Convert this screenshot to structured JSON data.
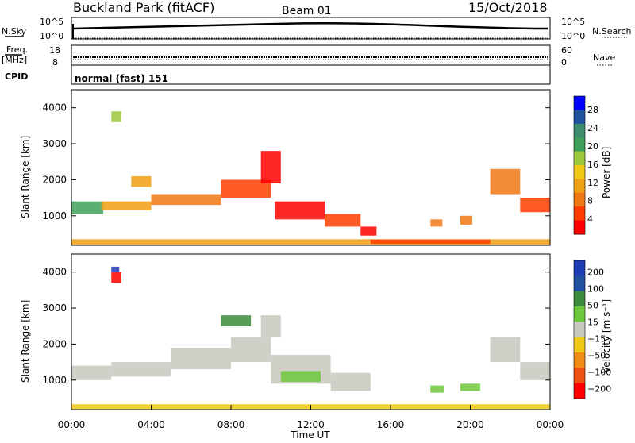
{
  "header": {
    "station": "Buckland Park (fitACF)",
    "beam": "Beam 01",
    "date": "15/Oct/2018"
  },
  "top_panels": {
    "nsky_label": "N.Sky",
    "nsky_ticks": [
      "10^5",
      "10^0"
    ],
    "nsearch_label": "N.Search",
    "nsearch_ticks": [
      "10^5",
      "10^0"
    ],
    "freq_label": "Freq.",
    "freq_unit": "[MHz]",
    "freq_ticks": [
      "18",
      "8"
    ],
    "nave_label": "Nave",
    "nave_ticks": [
      "60",
      "0"
    ],
    "cpid_label": "CPID",
    "cpid_value": "normal (fast) 151"
  },
  "chart_data": [
    {
      "type": "heatmap",
      "name": "power-panel",
      "ylabel": "Slant Range [km]",
      "yticks": [
        "1000",
        "2000",
        "3000",
        "4000"
      ],
      "ylim": [
        180,
        4500
      ],
      "xlim": [
        0,
        24
      ],
      "colorbar_label": "Power [dB]",
      "colorbar_ticks": [
        "4",
        "8",
        "12",
        "16",
        "20",
        "24",
        "28"
      ],
      "colorbar_colors": [
        "#0000ff",
        "#2050a0",
        "#3c8c6e",
        "#3fa05a",
        "#9cc83c",
        "#f0c814",
        "#f0a014",
        "#f07814",
        "#ff3c00",
        "#ff0000"
      ],
      "regions": [
        {
          "t": 0.0,
          "r": 1050,
          "dt": 1.6,
          "dr": 350,
          "c": "#3fa05a"
        },
        {
          "t": 1.5,
          "r": 1150,
          "dt": 2.5,
          "dr": 250,
          "c": "#f0a014"
        },
        {
          "t": 4.0,
          "r": 1300,
          "dt": 3.5,
          "dr": 300,
          "c": "#f07814"
        },
        {
          "t": 7.5,
          "r": 1500,
          "dt": 2.5,
          "dr": 500,
          "c": "#ff3c00"
        },
        {
          "t": 9.5,
          "r": 1900,
          "dt": 1.0,
          "dr": 900,
          "c": "#ff0000"
        },
        {
          "t": 10.2,
          "r": 900,
          "dt": 2.5,
          "dr": 500,
          "c": "#ff0000"
        },
        {
          "t": 12.7,
          "r": 700,
          "dt": 1.8,
          "dr": 350,
          "c": "#ff3c00"
        },
        {
          "t": 14.5,
          "r": 450,
          "dt": 0.8,
          "dr": 250,
          "c": "#ff0000"
        },
        {
          "t": 18.0,
          "r": 700,
          "dt": 0.6,
          "dr": 200,
          "c": "#f07814"
        },
        {
          "t": 19.5,
          "r": 750,
          "dt": 0.6,
          "dr": 250,
          "c": "#f07814"
        },
        {
          "t": 21.0,
          "r": 1600,
          "dt": 1.5,
          "dr": 700,
          "c": "#f07814"
        },
        {
          "t": 22.5,
          "r": 1100,
          "dt": 1.5,
          "dr": 400,
          "c": "#ff3c00"
        },
        {
          "t": 0.0,
          "r": 200,
          "dt": 24.0,
          "dr": 150,
          "c": "#f0a014"
        },
        {
          "t": 15.0,
          "r": 220,
          "dt": 6.0,
          "dr": 120,
          "c": "#ff3c00"
        },
        {
          "t": 2.0,
          "r": 3600,
          "dt": 0.5,
          "dr": 300,
          "c": "#9cc83c"
        },
        {
          "t": 3.0,
          "r": 1800,
          "dt": 1.0,
          "dr": 300,
          "c": "#f0a014"
        }
      ]
    },
    {
      "type": "heatmap",
      "name": "velocity-panel",
      "ylabel": "Slant Range [km]",
      "yticks": [
        "1000",
        "2000",
        "3000",
        "4000"
      ],
      "ylim": [
        180,
        4500
      ],
      "xlim": [
        0,
        24
      ],
      "xticks": [
        "00:00",
        "04:00",
        "08:00",
        "12:00",
        "16:00",
        "20:00",
        "00:00"
      ],
      "xlabel": "Time UT",
      "colorbar_label": "Velocity [m s⁻¹]",
      "colorbar_ticks": [
        "200",
        "100",
        "50",
        "15",
        "−15",
        "−50",
        "−100",
        "−200"
      ],
      "colorbar_colors": [
        "#1e3cb4",
        "#2050a0",
        "#3c8c3c",
        "#6ec83c",
        "#c8c8c0",
        "#f0c814",
        "#f08c14",
        "#f05014",
        "#ff0000"
      ],
      "regions": [
        {
          "t": 0.0,
          "r": 1000,
          "dt": 2.0,
          "dr": 400,
          "c": "#c8c8c0"
        },
        {
          "t": 2.0,
          "r": 1100,
          "dt": 3.0,
          "dr": 400,
          "c": "#c8c8c0"
        },
        {
          "t": 5.0,
          "r": 1300,
          "dt": 3.0,
          "dr": 600,
          "c": "#c8c8c0"
        },
        {
          "t": 8.0,
          "r": 1500,
          "dt": 2.0,
          "dr": 700,
          "c": "#c8c8c0"
        },
        {
          "t": 9.5,
          "r": 2200,
          "dt": 1.0,
          "dr": 600,
          "c": "#c8c8c0"
        },
        {
          "t": 10.0,
          "r": 900,
          "dt": 3.0,
          "dr": 800,
          "c": "#c8c8c0"
        },
        {
          "t": 13.0,
          "r": 700,
          "dt": 2.0,
          "dr": 500,
          "c": "#c8c8c0"
        },
        {
          "t": 10.5,
          "r": 950,
          "dt": 2.0,
          "dr": 300,
          "c": "#6ec83c"
        },
        {
          "t": 18.0,
          "r": 650,
          "dt": 0.7,
          "dr": 200,
          "c": "#6ec83c"
        },
        {
          "t": 19.5,
          "r": 700,
          "dt": 1.0,
          "dr": 200,
          "c": "#6ec83c"
        },
        {
          "t": 21.0,
          "r": 1500,
          "dt": 1.5,
          "dr": 700,
          "c": "#c8c8c0"
        },
        {
          "t": 22.5,
          "r": 1000,
          "dt": 1.5,
          "dr": 500,
          "c": "#c8c8c0"
        },
        {
          "t": 0.0,
          "r": 200,
          "dt": 24.0,
          "dr": 130,
          "c": "#f0c814"
        },
        {
          "t": 2.0,
          "r": 3700,
          "dt": 0.5,
          "dr": 300,
          "c": "#ff0000"
        },
        {
          "t": 2.0,
          "r": 4000,
          "dt": 0.4,
          "dr": 150,
          "c": "#1e3cb4"
        },
        {
          "t": 7.5,
          "r": 2500,
          "dt": 1.5,
          "dr": 300,
          "c": "#3c8c3c"
        }
      ]
    }
  ]
}
